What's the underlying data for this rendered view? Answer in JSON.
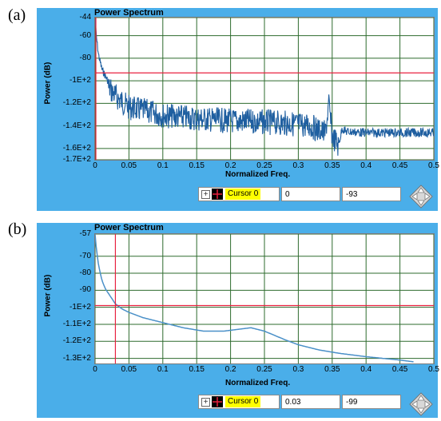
{
  "panels": [
    {
      "label": "(a)",
      "title": "Power Spectrum",
      "ylabel": "Power (dB)",
      "xlabel": "Normalized Freq.",
      "yticks": [
        "-44",
        "-60",
        "-80",
        "-1E+2",
        "-1.2E+2",
        "-1.4E+2",
        "-1.6E+2",
        "-1.7E+2"
      ],
      "xticks": [
        "0",
        "0.05",
        "0.1",
        "0.15",
        "0.2",
        "0.25",
        "0.3",
        "0.35",
        "0.4",
        "0.45",
        "0.5"
      ],
      "cursor": {
        "expand": "+",
        "name": "Cursor 0",
        "x": "0",
        "y": "-93"
      }
    },
    {
      "label": "(b)",
      "title": "Power Spectrum",
      "ylabel": "Power (dB)",
      "xlabel": "Normalized Freq.",
      "yticks": [
        "-57",
        "-70",
        "-80",
        "-90",
        "-1E+2",
        "-1.1E+2",
        "-1.2E+2",
        "-1.3E+2"
      ],
      "xticks": [
        "0",
        "0.05",
        "0.1",
        "0.15",
        "0.2",
        "0.25",
        "0.3",
        "0.35",
        "0.4",
        "0.45",
        "0.5"
      ],
      "cursor": {
        "expand": "+",
        "name": "Cursor 0",
        "x": "0.03",
        "y": "-99"
      }
    }
  ],
  "chart_data": [
    {
      "type": "line",
      "title": "Power Spectrum",
      "xlabel": "Normalized Freq.",
      "ylabel": "Power (dB)",
      "xlim": [
        0,
        0.5
      ],
      "ylim": [
        -170,
        -44
      ],
      "grid": true,
      "color": "#1f5fa0",
      "series": [
        {
          "x": [
            0,
            0.002,
            0.005,
            0.01,
            0.02,
            0.03,
            0.04,
            0.05,
            0.08,
            0.1,
            0.15,
            0.2,
            0.25,
            0.28,
            0.3,
            0.32,
            0.33,
            0.34,
            0.345,
            0.35,
            0.355,
            0.36,
            0.365,
            0.37,
            0.4,
            0.45,
            0.5
          ],
          "y": [
            -44,
            -60,
            -75,
            -88,
            -100,
            -108,
            -113,
            -118,
            -122,
            -125,
            -128,
            -130,
            -131,
            -132,
            -133,
            -135,
            -138,
            -141,
            -115,
            -143,
            -148,
            -153,
            -140,
            -143,
            -144,
            -144,
            -144
          ]
        }
      ],
      "cursor": {
        "name": "Cursor 0",
        "x": 0,
        "y": -93,
        "color": "#e8213f"
      }
    },
    {
      "type": "line",
      "title": "Power Spectrum",
      "xlabel": "Normalized Freq.",
      "ylabel": "Power (dB)",
      "xlim": [
        0,
        0.5
      ],
      "ylim": [
        -133,
        -57
      ],
      "grid": true,
      "color": "#4a90c8",
      "series": [
        {
          "x": [
            0,
            0.002,
            0.005,
            0.01,
            0.015,
            0.02,
            0.03,
            0.04,
            0.05,
            0.07,
            0.1,
            0.13,
            0.16,
            0.19,
            0.21,
            0.23,
            0.25,
            0.28,
            0.3,
            0.33,
            0.36,
            0.4,
            0.45,
            0.47
          ],
          "y": [
            -57,
            -66,
            -75,
            -84,
            -89,
            -92,
            -98,
            -101,
            -103,
            -106,
            -109,
            -112,
            -114,
            -114,
            -113,
            -112,
            -114,
            -119,
            -122,
            -125,
            -127,
            -129,
            -131,
            -132
          ]
        }
      ],
      "cursor": {
        "name": "Cursor 0",
        "x": 0.03,
        "y": -99,
        "color": "#e8213f"
      }
    }
  ]
}
